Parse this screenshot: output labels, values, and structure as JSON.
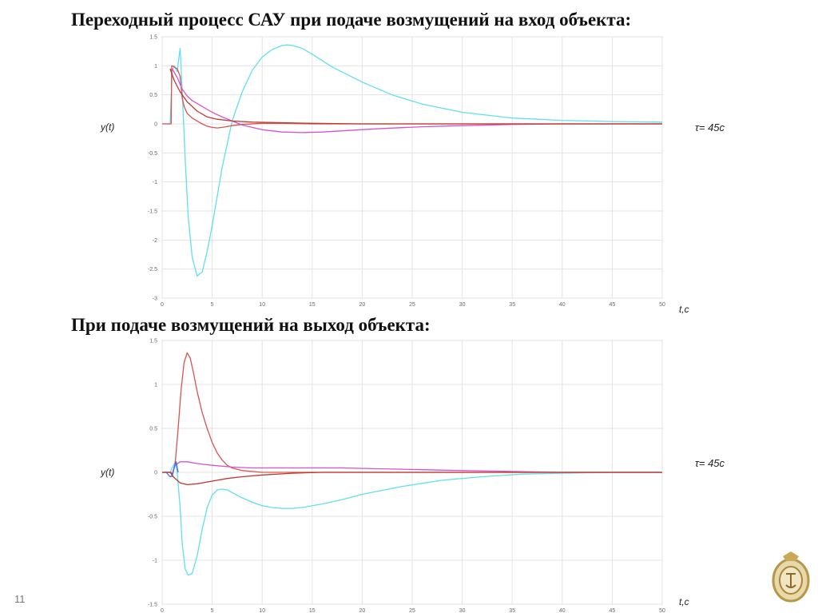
{
  "slide": {
    "title_top": "Переходный процесс САУ при подаче возмущений на вход объекта:",
    "title_bottom": "При подаче возмущений на выход объекта:",
    "page_number": "11"
  },
  "chart_data": [
    {
      "type": "line",
      "ylabel": "y(t)",
      "xlabel": "t,c",
      "annotation": "τ= 45с",
      "xlim": [
        0,
        50
      ],
      "ylim": [
        -3,
        1.5
      ],
      "xticks": [
        0,
        5,
        10,
        15,
        20,
        25,
        30,
        35,
        40,
        45,
        50
      ],
      "yticks": [
        -3,
        -2.5,
        -2,
        -1.5,
        -1,
        -0.5,
        0,
        0.5,
        1,
        1.5
      ],
      "grid": true,
      "series": [
        {
          "color": "#5ee0ef",
          "x": [
            0,
            0.8,
            1.0,
            1.2,
            1.5,
            1.8,
            2.0,
            2.3,
            2.6,
            3.0,
            3.5,
            4.0,
            4.5,
            5.0,
            5.5,
            6.0,
            6.5,
            7.0,
            8.0,
            9.0,
            10.0,
            11.0,
            12.0,
            12.5,
            13.0,
            14.0,
            15.0,
            17.0,
            20.0,
            23.0,
            26.0,
            30.0,
            35.0,
            40.0,
            45.0,
            50.0
          ],
          "y": [
            0,
            0,
            0.9,
            1.0,
            0.9,
            1.3,
            0.6,
            -0.6,
            -1.6,
            -2.3,
            -2.62,
            -2.55,
            -2.2,
            -1.75,
            -1.25,
            -0.75,
            -0.35,
            0.05,
            0.55,
            0.92,
            1.15,
            1.28,
            1.35,
            1.36,
            1.35,
            1.3,
            1.2,
            0.98,
            0.72,
            0.5,
            0.34,
            0.2,
            0.1,
            0.06,
            0.04,
            0.03
          ]
        },
        {
          "color": "#d9534f",
          "x": [
            0,
            0.9,
            0.95,
            1.0,
            1.5,
            1.8,
            2.0,
            2.2,
            2.5,
            3.0,
            3.5,
            4.0,
            4.5,
            5.0,
            5.5,
            6.0,
            7.0,
            8.0,
            10.0,
            12.0,
            15.0,
            20.0,
            30.0,
            40.0,
            50.0
          ],
          "y": [
            0,
            0,
            1.0,
            1.0,
            0.95,
            0.82,
            0.45,
            0.3,
            0.18,
            0.1,
            0.05,
            0.0,
            -0.04,
            -0.06,
            -0.07,
            -0.06,
            -0.03,
            -0.01,
            0.01,
            0.01,
            0.0,
            0.0,
            0.0,
            0.0,
            0.0
          ]
        },
        {
          "color": "#d652d0",
          "x": [
            1.0,
            1.5,
            2.0,
            2.5,
            3.0,
            4.0,
            5.0,
            6.0,
            7.0,
            8.0,
            10.0,
            12.0,
            14.0,
            16.0,
            18.0,
            22.0,
            26.0,
            30.0,
            35.0,
            40.0,
            45.0,
            50.0
          ],
          "y": [
            0.95,
            0.8,
            0.6,
            0.48,
            0.4,
            0.3,
            0.2,
            0.12,
            0.05,
            -0.02,
            -0.1,
            -0.14,
            -0.15,
            -0.14,
            -0.12,
            -0.08,
            -0.05,
            -0.03,
            -0.01,
            0.0,
            0.0,
            0.0
          ]
        },
        {
          "color": "#c0392b",
          "x": [
            0.8,
            1.2,
            1.8,
            2.5,
            3.5,
            4.5,
            5.5,
            7.0,
            9.0,
            12.0,
            15.0,
            20.0,
            30.0,
            40.0,
            50.0
          ],
          "y": [
            0.95,
            0.75,
            0.55,
            0.38,
            0.22,
            0.12,
            0.08,
            0.05,
            0.03,
            0.02,
            0.01,
            0.0,
            0.0,
            0.0,
            0.0
          ]
        }
      ]
    },
    {
      "type": "line",
      "ylabel": "y(t)",
      "xlabel": "t,c",
      "annotation": "τ= 45с",
      "xlim": [
        0,
        50
      ],
      "ylim": [
        -1.5,
        1.5
      ],
      "xticks": [
        0,
        5,
        10,
        15,
        20,
        25,
        30,
        35,
        40,
        45,
        50
      ],
      "yticks": [
        -1.5,
        -1,
        -0.5,
        0,
        0.5,
        1,
        1.5
      ],
      "grid": true,
      "series": [
        {
          "color": "#5ee0ef",
          "x": [
            0,
            0.8,
            1.0,
            1.3,
            1.5,
            1.8,
            2.0,
            2.3,
            2.6,
            3.0,
            3.5,
            4.0,
            4.5,
            5.0,
            5.5,
            6.0,
            6.5,
            7.0,
            8.0,
            9.0,
            10.0,
            11.0,
            12.0,
            13.0,
            14.0,
            16.0,
            18.0,
            20.0,
            24.0,
            28.0,
            32.0,
            36.0,
            40.0,
            45.0,
            50.0
          ],
          "y": [
            0,
            0,
            0.05,
            0.12,
            0.0,
            -0.4,
            -0.8,
            -1.1,
            -1.17,
            -1.15,
            -0.95,
            -0.65,
            -0.4,
            -0.26,
            -0.2,
            -0.19,
            -0.2,
            -0.23,
            -0.29,
            -0.34,
            -0.38,
            -0.4,
            -0.41,
            -0.41,
            -0.4,
            -0.36,
            -0.31,
            -0.25,
            -0.16,
            -0.09,
            -0.05,
            -0.02,
            -0.01,
            0.0,
            0.0
          ]
        },
        {
          "color": "#d9534f",
          "x": [
            0,
            0.9,
            1.0,
            1.3,
            1.6,
            1.9,
            2.2,
            2.5,
            2.8,
            3.1,
            3.5,
            4.0,
            4.5,
            5.0,
            5.5,
            6.0,
            6.5,
            7.0,
            8.0,
            9.0,
            10.0,
            12.0,
            15.0,
            20.0,
            30.0,
            50.0
          ],
          "y": [
            0,
            0,
            -0.05,
            0.1,
            0.5,
            0.95,
            1.25,
            1.36,
            1.3,
            1.15,
            0.92,
            0.68,
            0.5,
            0.34,
            0.22,
            0.14,
            0.08,
            0.05,
            0.02,
            0.01,
            0.0,
            0.0,
            0.0,
            0.0,
            0.0,
            0.0
          ]
        },
        {
          "color": "#d652d0",
          "x": [
            0,
            0.8,
            1.0,
            1.3,
            1.8,
            2.5,
            3.5,
            5.0,
            7.0,
            9.0,
            11.0,
            13.0,
            15.0,
            18.0,
            22.0,
            26.0,
            30.0,
            35.0,
            40.0,
            45.0,
            50.0
          ],
          "y": [
            0,
            0,
            -0.02,
            0.08,
            0.12,
            0.12,
            0.1,
            0.08,
            0.06,
            0.05,
            0.05,
            0.05,
            0.05,
            0.05,
            0.04,
            0.03,
            0.02,
            0.01,
            0.0,
            0.0,
            0.0
          ]
        },
        {
          "color": "#c0392b",
          "x": [
            0,
            0.8,
            1.2,
            1.8,
            2.5,
            3.5,
            5.0,
            6.5,
            8.0,
            10.0,
            13.0,
            16.0,
            20.0,
            25.0,
            30.0,
            40.0,
            50.0
          ],
          "y": [
            0,
            0,
            -0.06,
            -0.12,
            -0.14,
            -0.13,
            -0.1,
            -0.07,
            -0.05,
            -0.03,
            -0.01,
            0.0,
            0.0,
            0.0,
            0.0,
            0.0,
            0.0
          ]
        },
        {
          "color": "#4a6cd4",
          "x": [
            0.4,
            0.8,
            1.0,
            1.2,
            1.4,
            1.6
          ],
          "y": [
            0,
            -0.05,
            -0.04,
            0.06,
            0.12,
            0.0
          ]
        }
      ]
    }
  ]
}
